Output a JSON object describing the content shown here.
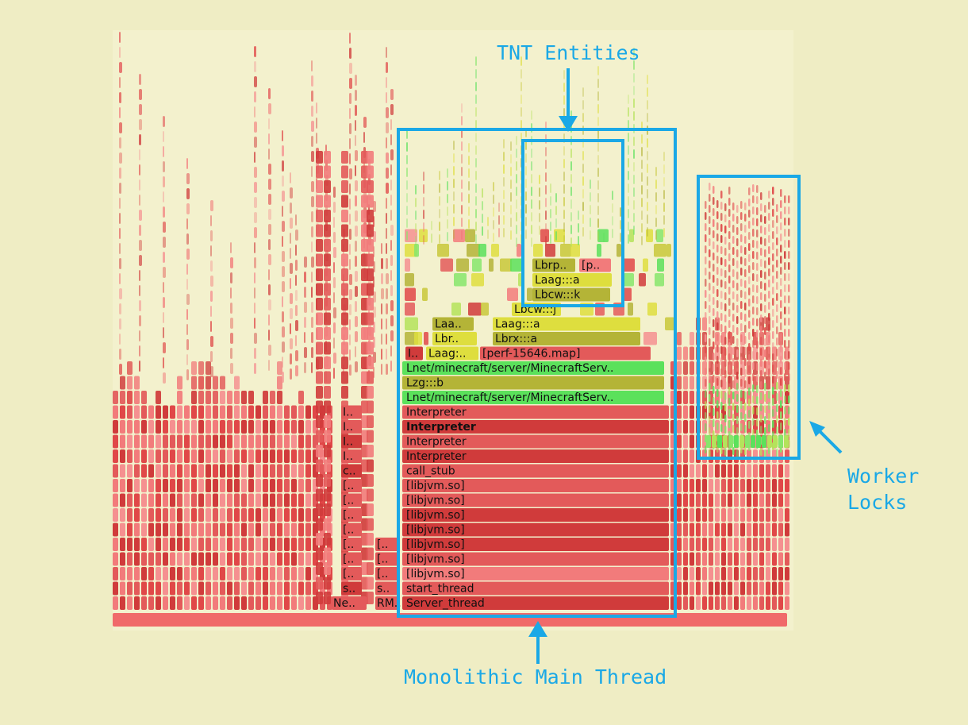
{
  "annotations": {
    "tnt": "TNT Entities",
    "main": "Monolithic Main Thread",
    "worker_line1": "Worker",
    "worker_line2": "Locks"
  },
  "colors": {
    "accent": "#1aa8e6",
    "background": "#efedc4",
    "panel": "#f3f1cd",
    "red_dark": "#d03b3b",
    "red_mid": "#e35a5a",
    "red_light": "#f27b7b",
    "green": "#5be15b",
    "olive": "#b4b437",
    "yellow": "#dede3e"
  },
  "frames": [
    {
      "label": "Server_thread",
      "color": "red_dark"
    },
    {
      "label": "start_thread",
      "color": "red_mid"
    },
    {
      "label": "[libjvm.so]",
      "color": "red_light"
    },
    {
      "label": "[libjvm.so]",
      "color": "red_mid"
    },
    {
      "label": "[libjvm.so]",
      "color": "red_dark"
    },
    {
      "label": "[libjvm.so]",
      "color": "red_dark"
    },
    {
      "label": "[libjvm.so]",
      "color": "red_dark"
    },
    {
      "label": "[libjvm.so]",
      "color": "red_mid"
    },
    {
      "label": "[libjvm.so]",
      "color": "red_mid"
    },
    {
      "label": "call_stub",
      "color": "red_mid"
    },
    {
      "label": "Interpreter",
      "color": "red_dark"
    },
    {
      "label": "Interpreter",
      "color": "red_mid"
    },
    {
      "label": "Interpreter",
      "color": "red_dark",
      "bold": true
    },
    {
      "label": "Interpreter",
      "color": "red_mid"
    },
    {
      "label": "Lnet/minecraft/server/MinecraftServ..",
      "color": "green"
    },
    {
      "label": "Lzg:::b",
      "color": "olive"
    },
    {
      "label": "Lnet/minecraft/server/MinecraftServ..",
      "color": "green"
    }
  ],
  "left_frames": [
    {
      "label": "Ne..",
      "color": "red_mid"
    },
    {
      "label": "s..",
      "color": "red_dark"
    },
    {
      "label": "[..",
      "color": "red_mid"
    },
    {
      "label": "[..",
      "color": "red_mid"
    },
    {
      "label": "[..",
      "color": "red_mid"
    },
    {
      "label": "[..",
      "color": "red_mid"
    },
    {
      "label": "[..",
      "color": "red_mid"
    },
    {
      "label": "[..",
      "color": "red_mid"
    },
    {
      "label": "[..",
      "color": "red_mid"
    },
    {
      "label": "c..",
      "color": "red_dark"
    },
    {
      "label": "I..",
      "color": "red_mid"
    },
    {
      "label": "I..",
      "color": "red_dark"
    },
    {
      "label": "I..",
      "color": "red_mid"
    },
    {
      "label": "I..",
      "color": "red_mid"
    }
  ],
  "rm_frames": [
    {
      "label": "RM..",
      "color": "red_mid"
    },
    {
      "label": "s..",
      "color": "red_mid"
    },
    {
      "label": "[..",
      "color": "red_mid"
    },
    {
      "label": "[..",
      "color": "red_mid"
    },
    {
      "label": "[..",
      "color": "red_mid"
    }
  ],
  "upper_frames": [
    {
      "label": "I..",
      "color": "red_dark"
    },
    {
      "label": "Laag:..",
      "color": "yellow"
    },
    {
      "label": "[perf-15646.map]",
      "color": "red_mid"
    },
    {
      "label": "Lbr..",
      "color": "yellow"
    },
    {
      "label": "Lbrx:::a",
      "color": "olive"
    },
    {
      "label": "Laa..",
      "color": "olive"
    },
    {
      "label": "Laag:::a",
      "color": "yellow"
    },
    {
      "label": "Lbcw:::j",
      "color": "yellow"
    },
    {
      "label": "Lbcw:::k",
      "color": "olive"
    },
    {
      "label": "Laag:::a",
      "color": "yellow"
    },
    {
      "label": "Lbrp..",
      "color": "olive"
    },
    {
      "label": "[p..",
      "color": "red_light"
    }
  ]
}
